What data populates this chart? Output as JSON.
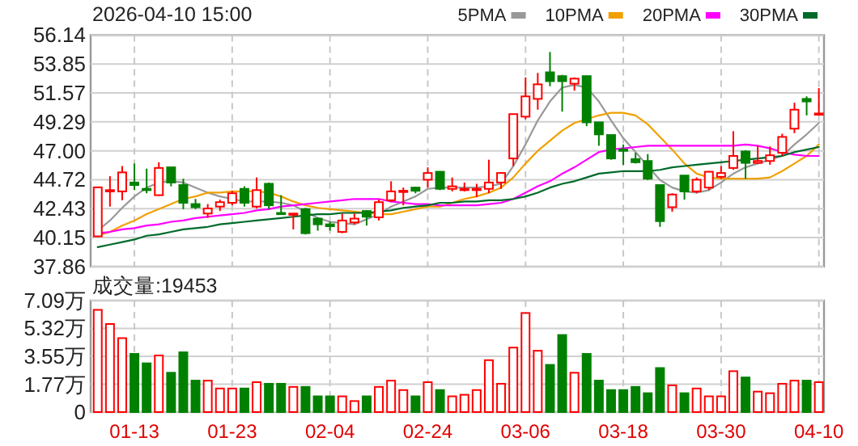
{
  "chart_data": [
    {
      "type": "candlestick",
      "title": "2026-04-10 15:00",
      "categories": [
        null,
        null,
        null,
        null,
        null,
        null,
        null,
        null,
        null,
        null,
        null,
        null,
        null,
        null,
        null,
        null,
        null,
        null,
        null,
        null,
        null,
        null,
        null,
        null,
        null,
        null,
        null,
        null,
        null,
        null,
        null,
        null,
        null,
        null,
        null,
        null,
        null,
        null,
        null,
        null,
        null,
        null,
        null,
        null,
        null,
        null,
        null,
        null,
        null,
        null,
        null,
        null,
        null,
        null,
        null,
        null,
        null,
        null,
        null,
        null
      ],
      "ohlc": [
        [
          40.25,
          44.12,
          40.2,
          44.12
        ],
        [
          43.8,
          45.0,
          42.6,
          43.9
        ],
        [
          43.8,
          45.8,
          43.1,
          45.3
        ],
        [
          44.5,
          46.0,
          43.9,
          44.3
        ],
        [
          44.0,
          45.6,
          43.65,
          43.95
        ],
        [
          43.5,
          46.1,
          43.45,
          45.65
        ],
        [
          45.7,
          45.7,
          44.2,
          44.5
        ],
        [
          44.3,
          44.8,
          42.4,
          42.9
        ],
        [
          42.8,
          43.2,
          42.4,
          42.55
        ],
        [
          42.05,
          42.8,
          41.7,
          42.45
        ],
        [
          42.6,
          43.15,
          42.25,
          42.95
        ],
        [
          42.9,
          43.85,
          42.7,
          43.65
        ],
        [
          44.0,
          44.2,
          42.6,
          42.9
        ],
        [
          42.6,
          44.9,
          42.45,
          43.9
        ],
        [
          44.4,
          44.5,
          42.4,
          42.7
        ],
        [
          42.1,
          43.5,
          42.05,
          42.05
        ],
        [
          42.0,
          42.05,
          40.8,
          42.05
        ],
        [
          42.4,
          42.5,
          40.4,
          40.5
        ],
        [
          41.65,
          41.75,
          40.7,
          41.2
        ],
        [
          41.2,
          41.4,
          40.7,
          41.05
        ],
        [
          40.6,
          42.05,
          40.5,
          41.5
        ],
        [
          41.35,
          42.05,
          41.2,
          41.65
        ],
        [
          42.25,
          42.3,
          41.1,
          41.8
        ],
        [
          41.75,
          43.15,
          41.5,
          42.95
        ],
        [
          43.1,
          44.6,
          42.95,
          43.8
        ],
        [
          43.8,
          44.1,
          42.7,
          43.85
        ],
        [
          44.1,
          44.15,
          43.65,
          43.85
        ],
        [
          44.72,
          45.7,
          44.1,
          45.25
        ],
        [
          45.35,
          45.4,
          43.9,
          44.0
        ],
        [
          44.0,
          44.9,
          43.8,
          44.2
        ],
        [
          43.9,
          44.5,
          43.8,
          44.0
        ],
        [
          43.95,
          44.4,
          43.35,
          44.0
        ],
        [
          44.0,
          46.3,
          43.65,
          44.5
        ],
        [
          44.5,
          45.3,
          44.0,
          45.25
        ],
        [
          46.4,
          49.9,
          45.8,
          49.9
        ],
        [
          49.7,
          52.8,
          49.5,
          51.3
        ],
        [
          51.1,
          53.15,
          50.25,
          52.25
        ],
        [
          53.2,
          54.8,
          52.1,
          52.5
        ],
        [
          52.9,
          53.0,
          50.1,
          52.5
        ],
        [
          52.3,
          52.8,
          51.75,
          52.7
        ],
        [
          52.9,
          52.9,
          48.95,
          49.25
        ],
        [
          49.25,
          49.25,
          47.4,
          48.3
        ],
        [
          48.25,
          48.25,
          46.3,
          46.4
        ],
        [
          47.1,
          47.5,
          45.9,
          47.0
        ],
        [
          46.35,
          46.85,
          46.0,
          46.1
        ],
        [
          46.2,
          46.75,
          44.7,
          44.8
        ],
        [
          44.3,
          44.3,
          41.0,
          41.45
        ],
        [
          42.55,
          43.65,
          42.2,
          43.55
        ],
        [
          45.05,
          45.05,
          43.15,
          43.8
        ],
        [
          43.8,
          44.9,
          43.65,
          44.72
        ],
        [
          44.1,
          45.4,
          43.9,
          45.35
        ],
        [
          44.95,
          45.8,
          44.8,
          45.25
        ],
        [
          45.65,
          48.55,
          45.5,
          46.6
        ],
        [
          46.95,
          47.05,
          44.8,
          46.05
        ],
        [
          46.05,
          47.4,
          46.0,
          46.2
        ],
        [
          46.2,
          47.35,
          45.9,
          46.65
        ],
        [
          46.85,
          48.35,
          46.6,
          48.1
        ],
        [
          48.75,
          50.8,
          48.4,
          50.25
        ],
        [
          51.1,
          51.3,
          49.8,
          50.9
        ],
        [
          49.9,
          51.95,
          49.9,
          49.95
        ]
      ],
      "series": [
        {
          "name": "5PMA",
          "type": "line",
          "color": "#999999",
          "values": [
            40.7,
            41.5,
            42.5,
            43.4,
            44.1,
            44.5,
            44.6,
            44.5,
            44.1,
            43.7,
            43.4,
            43.2,
            43.0,
            43.0,
            43.0,
            42.9,
            42.7,
            42.2,
            41.7,
            41.4,
            41.3,
            41.2,
            41.6,
            42.0,
            42.6,
            43.0,
            43.4,
            44.0,
            44.1,
            44.1,
            44.1,
            44.1,
            44.2,
            44.4,
            45.8,
            47.5,
            49.4,
            50.9,
            52.0,
            52.2,
            52.0,
            50.9,
            49.4,
            48.0,
            46.9,
            45.8,
            44.7,
            44.1,
            43.8,
            43.7,
            43.9,
            44.5,
            45.2,
            45.7,
            46.0,
            46.3,
            46.6,
            47.5,
            48.3,
            49.2
          ]
        },
        {
          "name": "10PMA",
          "type": "line",
          "color": "#f0a000",
          "values": [
            40.3,
            40.6,
            41.1,
            41.5,
            42.0,
            42.4,
            42.8,
            43.2,
            43.4,
            43.7,
            43.7,
            43.8,
            43.8,
            43.8,
            43.7,
            43.4,
            43.0,
            42.7,
            42.5,
            42.4,
            42.3,
            42.2,
            42.1,
            42.0,
            42.0,
            42.2,
            42.4,
            42.6,
            42.6,
            42.9,
            43.2,
            43.4,
            43.7,
            44.1,
            44.9,
            46.0,
            47.0,
            47.8,
            48.6,
            49.2,
            49.5,
            49.8,
            50.0,
            50.0,
            49.8,
            49.1,
            48.1,
            47.1,
            46.0,
            45.2,
            44.9,
            44.8,
            44.8,
            44.8,
            44.8,
            44.9,
            45.4,
            46.0,
            46.6,
            47.5
          ]
        },
        {
          "name": "20PMA",
          "type": "line",
          "color": "#ff00ff",
          "values": [
            40.5,
            40.6,
            40.8,
            40.9,
            41.1,
            41.2,
            41.4,
            41.5,
            41.7,
            41.8,
            41.9,
            42.0,
            42.1,
            42.3,
            42.4,
            42.6,
            42.7,
            42.8,
            42.9,
            43.0,
            43.1,
            43.2,
            43.2,
            43.2,
            43.0,
            42.9,
            42.8,
            42.8,
            42.7,
            42.7,
            42.7,
            42.7,
            42.8,
            42.9,
            43.2,
            43.7,
            44.2,
            44.6,
            45.2,
            45.7,
            46.3,
            46.9,
            47.1,
            47.2,
            47.3,
            47.4,
            47.4,
            47.4,
            47.4,
            47.4,
            47.4,
            47.4,
            47.4,
            47.5,
            47.4,
            47.2,
            46.9,
            46.7,
            46.6,
            46.6
          ]
        },
        {
          "name": "30PMA",
          "type": "line",
          "color": "#006a2a",
          "values": [
            39.4,
            39.6,
            39.8,
            40.0,
            40.3,
            40.4,
            40.6,
            40.8,
            40.9,
            41.0,
            41.2,
            41.3,
            41.4,
            41.5,
            41.6,
            41.7,
            41.8,
            41.9,
            42.0,
            42.0,
            42.1,
            42.1,
            42.1,
            42.2,
            42.3,
            42.5,
            42.6,
            42.7,
            42.9,
            42.9,
            43.0,
            43.0,
            43.1,
            43.1,
            43.2,
            43.4,
            43.7,
            44.1,
            44.4,
            44.6,
            44.9,
            45.2,
            45.3,
            45.4,
            45.4,
            45.4,
            45.5,
            45.7,
            45.8,
            45.9,
            46.0,
            46.1,
            46.2,
            46.3,
            46.4,
            46.5,
            46.6,
            46.9,
            47.1,
            47.3
          ]
        }
      ],
      "tick_labels": "y",
      "ylim": [
        37.86,
        56.14
      ],
      "yticks": [
        37.86,
        40.15,
        42.43,
        44.72,
        {
          "value": 47,
          "label": "47.00"
        },
        49.29,
        51.57,
        53.85,
        56.14
      ],
      "grid": true,
      "legend": "top right"
    },
    {
      "type": "bar",
      "title": "成交量:19453",
      "categories": [
        null,
        null,
        null,
        "01-13",
        null,
        null,
        null,
        null,
        null,
        null,
        null,
        "01-23",
        null,
        null,
        null,
        null,
        null,
        null,
        null,
        "02-04",
        null,
        null,
        null,
        null,
        null,
        null,
        null,
        "02-24",
        null,
        null,
        null,
        null,
        null,
        null,
        null,
        "03-06",
        null,
        null,
        null,
        null,
        null,
        null,
        null,
        "03-18",
        null,
        null,
        null,
        null,
        null,
        null,
        null,
        "03-30",
        null,
        null,
        null,
        null,
        null,
        null,
        null,
        "04-10"
      ],
      "values": [
        6.5,
        5.6,
        4.7,
        3.7,
        3.1,
        3.6,
        2.5,
        3.8,
        2.0,
        2.0,
        1.5,
        1.5,
        1.5,
        1.9,
        1.8,
        1.8,
        1.6,
        1.6,
        1.0,
        1.0,
        1.0,
        0.7,
        1.0,
        1.6,
        2.0,
        1.4,
        1.0,
        1.9,
        1.4,
        1.0,
        1.1,
        1.4,
        3.3,
        1.8,
        4.1,
        6.3,
        3.9,
        3.0,
        4.9,
        2.5,
        3.7,
        2.0,
        1.4,
        1.4,
        1.6,
        1.2,
        2.8,
        1.7,
        1.2,
        1.5,
        1.0,
        1.0,
        2.6,
        2.2,
        1.3,
        1.2,
        1.8,
        2.0,
        2.0,
        1.9
      ],
      "colors": [
        "#ff0000",
        "#ff0000",
        "#ff0000",
        "#008000",
        "#008000",
        "#ff0000",
        "#008000",
        "#008000",
        "#008000",
        "#ff0000",
        "#ff0000",
        "#ff0000",
        "#008000",
        "#ff0000",
        "#008000",
        "#008000",
        "#ff0000",
        "#008000",
        "#008000",
        "#008000",
        "#ff0000",
        "#ff0000",
        "#008000",
        "#ff0000",
        "#ff0000",
        "#ff0000",
        "#008000",
        "#ff0000",
        "#008000",
        "#ff0000",
        "#ff0000",
        "#ff0000",
        "#ff0000",
        "#ff0000",
        "#ff0000",
        "#ff0000",
        "#ff0000",
        "#008000",
        "#008000",
        "#ff0000",
        "#008000",
        "#008000",
        "#008000",
        "#008000",
        "#008000",
        "#008000",
        "#008000",
        "#ff0000",
        "#008000",
        "#ff0000",
        "#ff0000",
        "#ff0000",
        "#ff0000",
        "#008000",
        "#ff0000",
        "#ff0000",
        "#ff0000",
        "#ff0000",
        "#008000",
        "#ff0000"
      ],
      "ylim": [
        0,
        7.09
      ],
      "yticks": [
        0,
        {
          "value": 1.77,
          "label": "1.77万"
        },
        {
          "value": 3.55,
          "label": "3.55万"
        },
        {
          "value": 5.32,
          "label": "5.32万"
        },
        {
          "value": 7.09,
          "label": "7.09万"
        }
      ],
      "grid": true
    }
  ]
}
